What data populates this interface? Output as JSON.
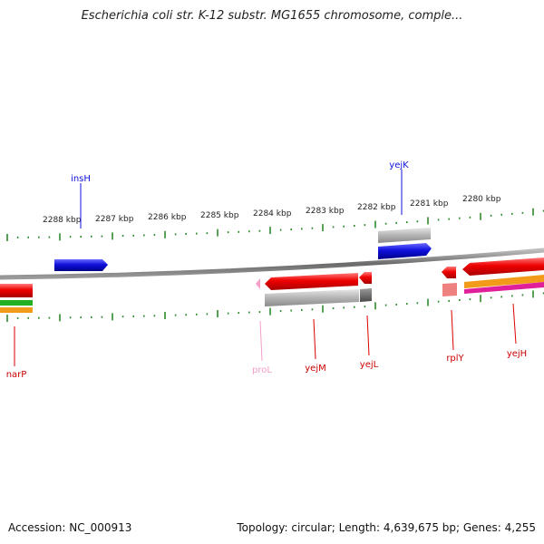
{
  "title": "Escherichia coli str. K-12 substr. MG1655 chromosome, comple...",
  "footer": {
    "accession": "Accession: NC_000913",
    "info": "Topology: circular; Length: 4,639,675 bp; Genes: 4,255"
  },
  "colors": {
    "backbone": "#7a7a7a",
    "tick": "#2e8b2e",
    "forward_gene": "#1010dd",
    "reverse_gene": "#dd0000",
    "pseudo": "#f4a0c8",
    "cds_gray": "#b8b8b8",
    "dark_gray": "#6a6a6a",
    "green": "#22b022",
    "orange": "#f29a1a",
    "magenta": "#e0209a",
    "salmon": "#ee8080"
  },
  "scale_labels": [
    "2288 kbp",
    "2287 kbp",
    "2286 kbp",
    "2285 kbp",
    "2284 kbp",
    "2283 kbp",
    "2282 kbp",
    "2281 kbp",
    "2280 kbp"
  ],
  "genes": [
    {
      "name": "insH",
      "strand": "forward",
      "color": "#1010dd"
    },
    {
      "name": "yejK",
      "strand": "forward",
      "color": "#1010dd"
    },
    {
      "name": "narP",
      "strand": "reverse",
      "color": "#dd0000"
    },
    {
      "name": "proL",
      "strand": "reverse",
      "color": "#f4a0c8"
    },
    {
      "name": "yejM",
      "strand": "reverse",
      "color": "#dd0000"
    },
    {
      "name": "yejL",
      "strand": "reverse",
      "color": "#dd0000"
    },
    {
      "name": "rplY",
      "strand": "reverse",
      "color": "#dd0000"
    },
    {
      "name": "yejH",
      "strand": "reverse",
      "color": "#dd0000"
    }
  ]
}
